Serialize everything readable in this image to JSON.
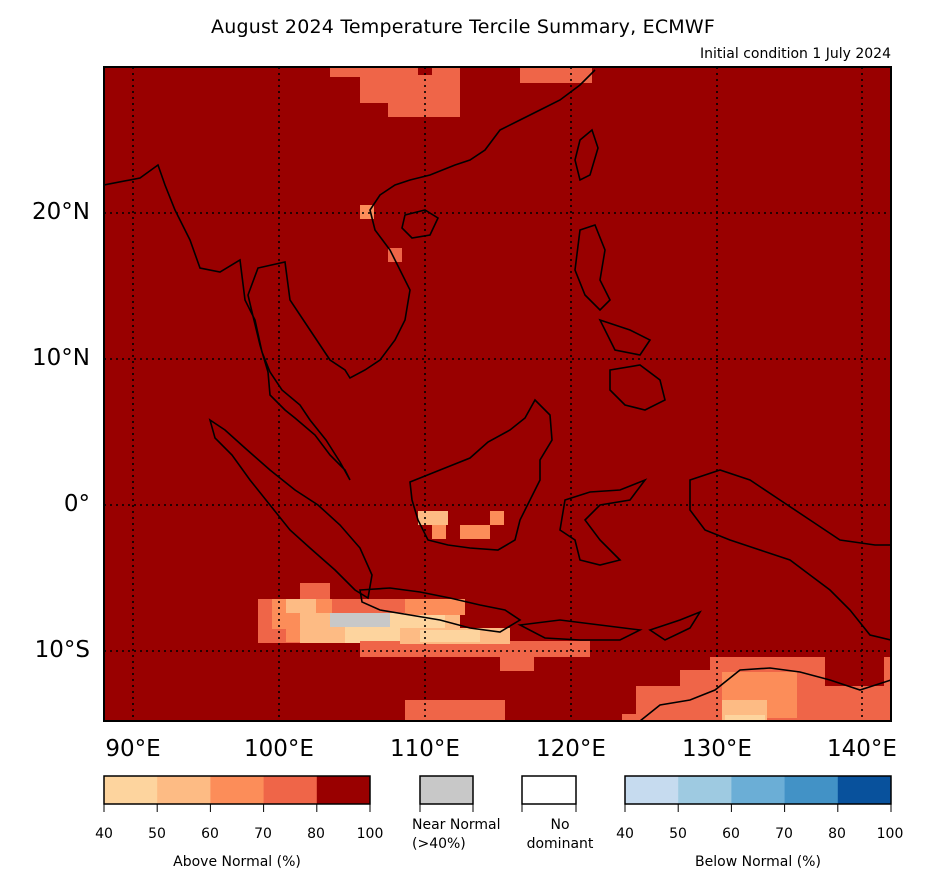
{
  "title": "August 2024 Temperature Tercile Summary, ECMWF",
  "subtitle": "Initial condition 1 July 2024",
  "map": {
    "lon_range": [
      88,
      142
    ],
    "lat_range": [
      -15,
      30
    ],
    "lat_labels": [
      "20°N",
      "10°N",
      "0°",
      "10°S"
    ],
    "lon_labels": [
      "90°E",
      "100°E",
      "110°E",
      "120°E",
      "130°E",
      "140°E"
    ],
    "dominant_fill": "#990000",
    "grid": "dotted"
  },
  "legend": {
    "above": {
      "label": "Above Normal (%)",
      "ticks": [
        "40",
        "50",
        "60",
        "70",
        "80",
        "100"
      ],
      "colors": [
        "#fdd49e",
        "#fdbb84",
        "#fc8d59",
        "#ef6548",
        "#990000"
      ]
    },
    "near": {
      "label_line1": "Near Normal",
      "label_line2": "(>40%)",
      "color": "#c8c8c8"
    },
    "none": {
      "label_line1": "No",
      "label_line2": "dominant",
      "color": "#ffffff"
    },
    "below": {
      "label": "Below Normal (%)",
      "ticks": [
        "40",
        "50",
        "60",
        "70",
        "80",
        "100"
      ],
      "colors": [
        "#c6dbef",
        "#9ecae1",
        "#6baed6",
        "#4292c6",
        "#08519c"
      ]
    }
  }
}
